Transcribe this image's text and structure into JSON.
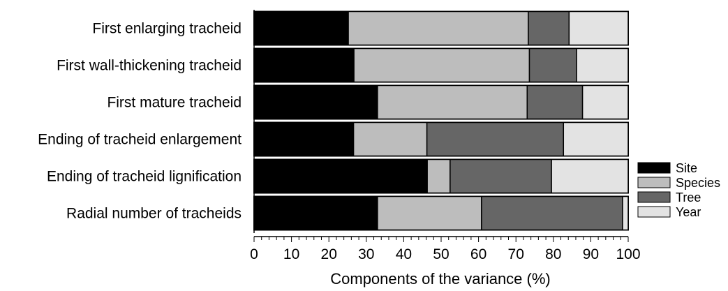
{
  "chart_data": {
    "type": "bar",
    "orientation": "horizontal",
    "stacked": true,
    "categories": [
      "First enlarging tracheid",
      "First wall-thickening tracheid",
      "First mature tracheid",
      "Ending of tracheid enlargement",
      "Ending of tracheid lignification",
      "Radial number of tracheids"
    ],
    "series": [
      {
        "name": "Site",
        "color": "#000000",
        "values": [
          25.2,
          26.7,
          33.0,
          26.6,
          46.3,
          33.0
        ]
      },
      {
        "name": "Species",
        "color": "#bdbdbd",
        "values": [
          48.1,
          46.9,
          40.0,
          19.6,
          6.1,
          27.8
        ]
      },
      {
        "name": "Tree",
        "color": "#666666",
        "values": [
          10.9,
          12.6,
          14.8,
          36.5,
          27.1,
          37.7
        ]
      },
      {
        "name": "Year",
        "color": "#e3e3e3",
        "values": [
          15.8,
          13.8,
          12.2,
          17.3,
          20.5,
          1.5
        ]
      }
    ],
    "xlabel": "Components of the variance (%)",
    "ylabel": "",
    "title": "",
    "xlim": [
      0,
      100
    ],
    "xticks": [
      0,
      10,
      20,
      30,
      40,
      50,
      60,
      70,
      80,
      90,
      100
    ],
    "grid": false,
    "legend": "right"
  }
}
